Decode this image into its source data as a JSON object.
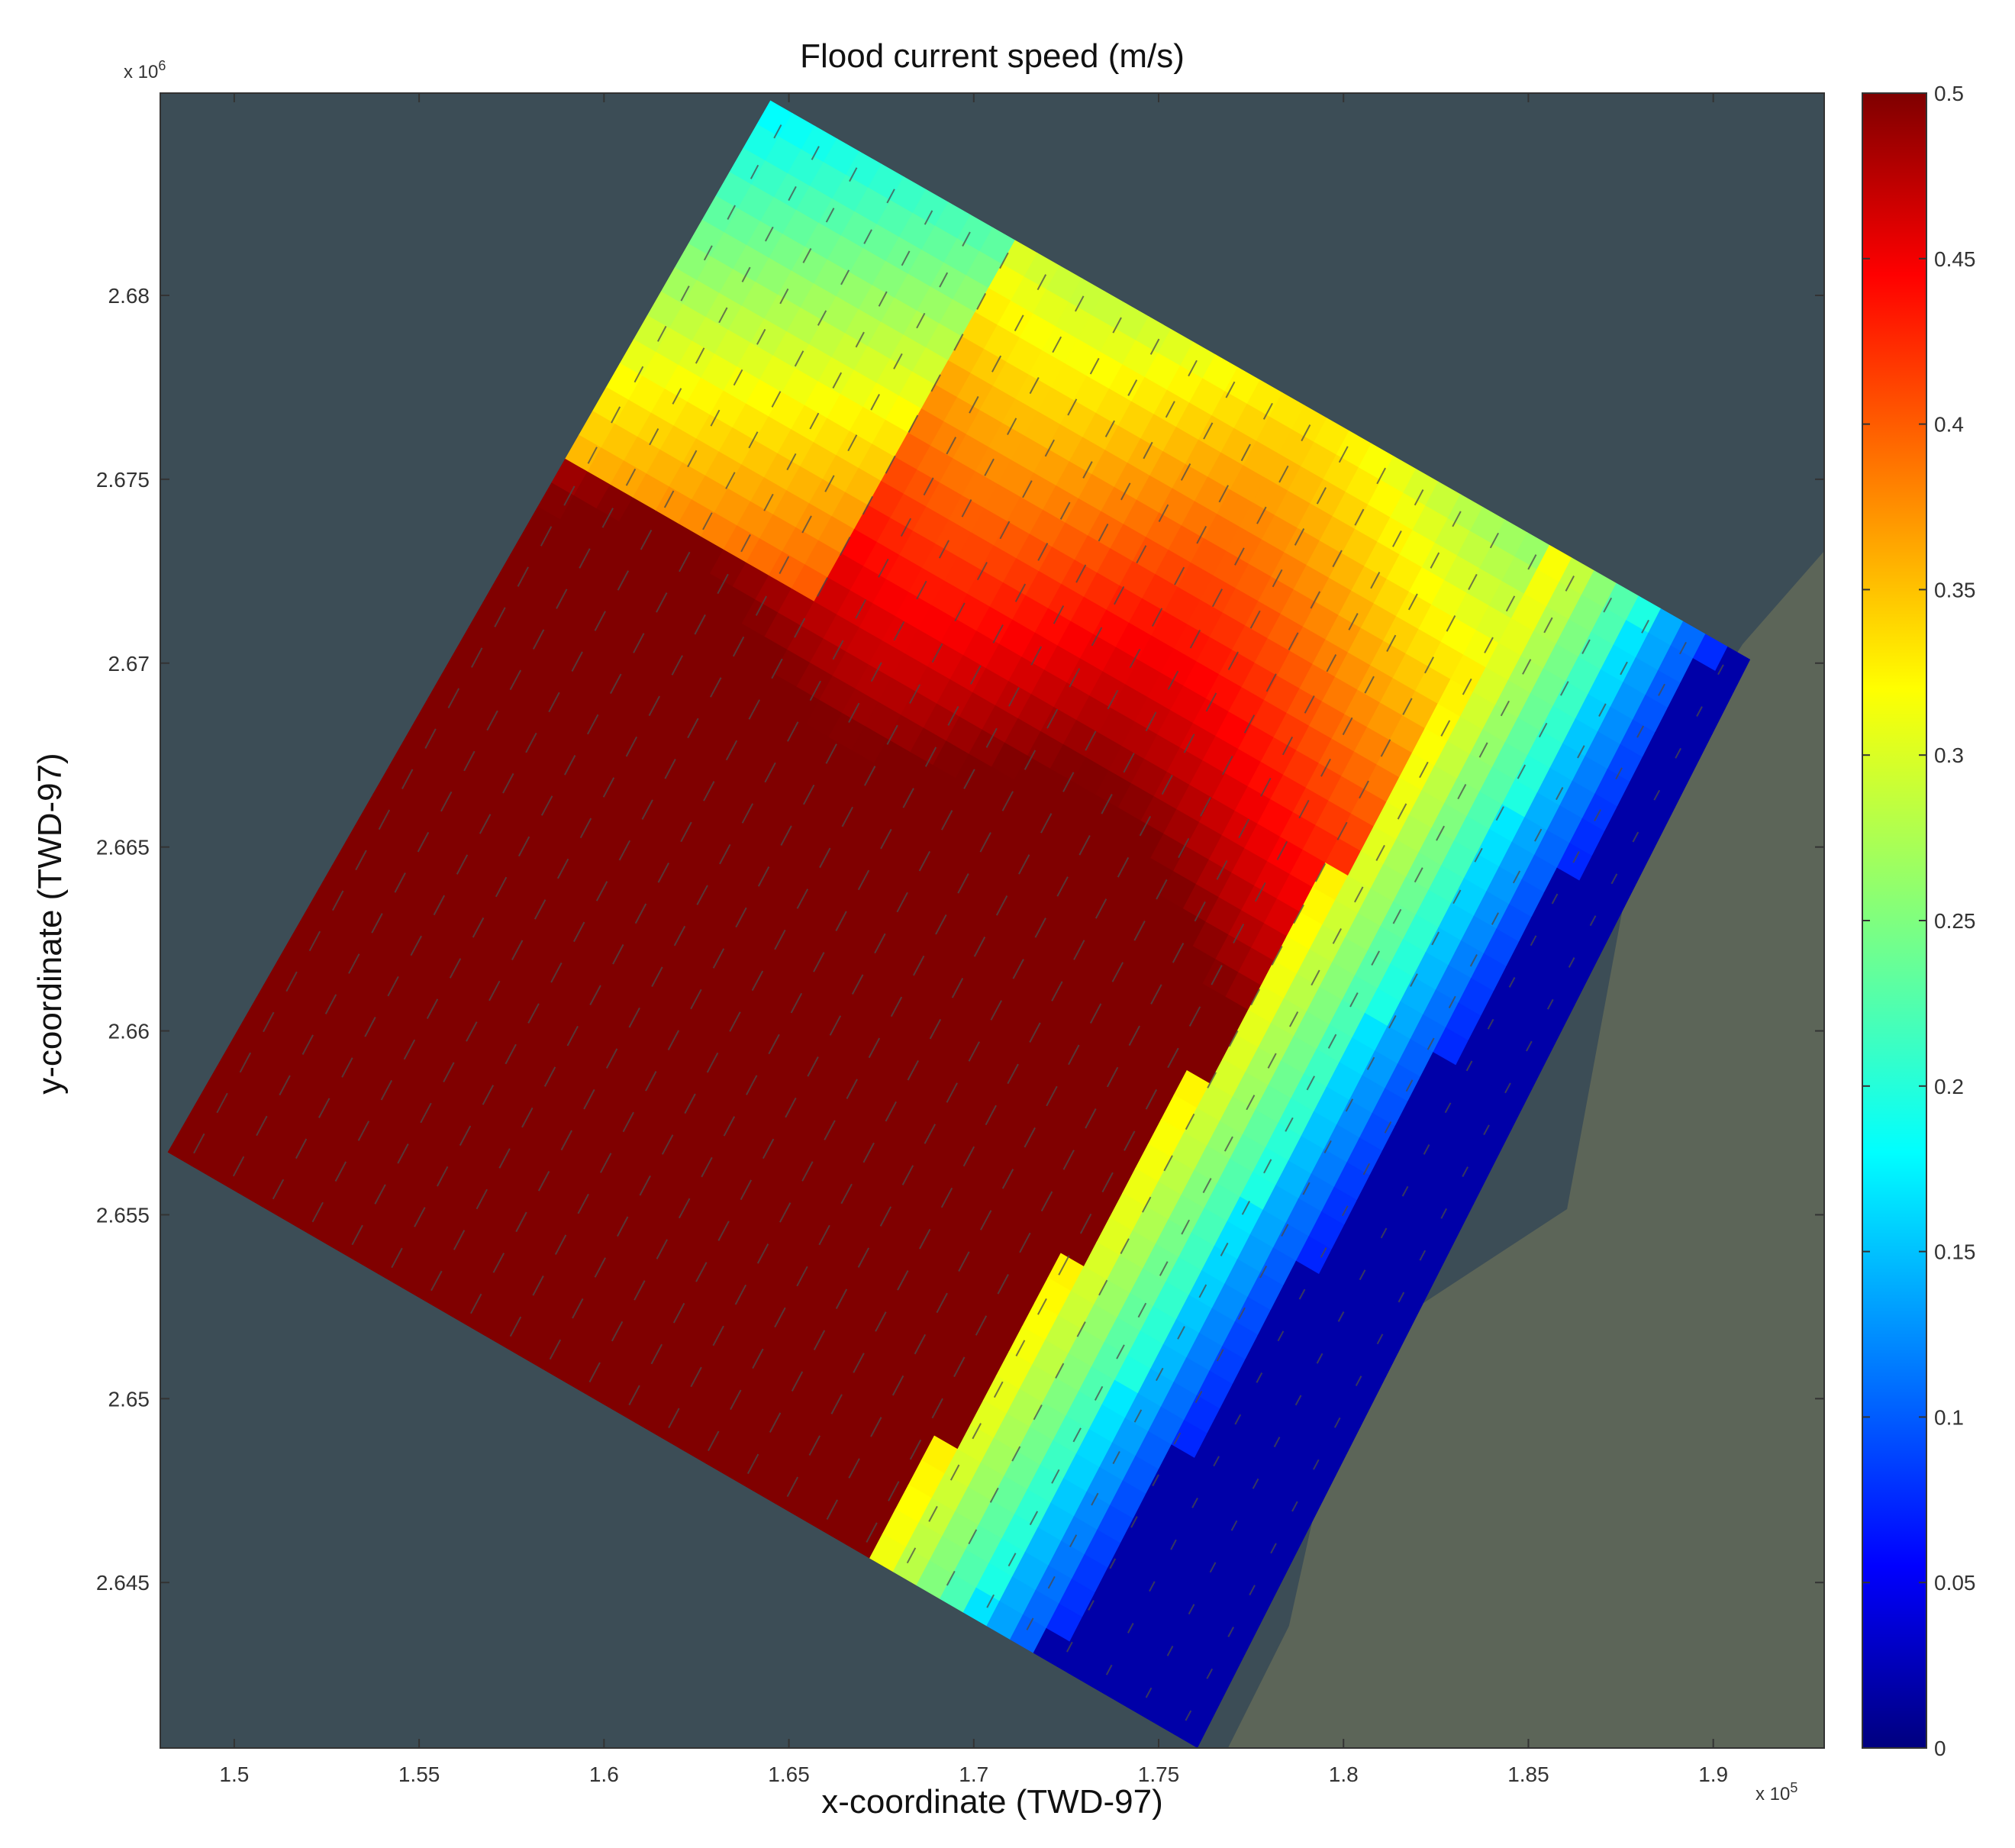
{
  "chart_data": {
    "type": "heatmap",
    "title": "Flood current speed (m/s)",
    "xlabel": "x-coordinate (TWD-97)",
    "ylabel": "y-coordinate (TWD-97)",
    "x_exponent_label": "x 10",
    "x_exponent_power": "5",
    "y_exponent_label": "x 10",
    "y_exponent_power": "6",
    "xlim": [
      1.48,
      1.93
    ],
    "ylim": [
      2.6405,
      2.6855
    ],
    "x_ticks": [
      1.5,
      1.55,
      1.6,
      1.65,
      1.7,
      1.75,
      1.8,
      1.85,
      1.9
    ],
    "x_tick_labels": [
      "1.5",
      "1.55",
      "1.6",
      "1.65",
      "1.7",
      "1.75",
      "1.8",
      "1.85",
      "1.9"
    ],
    "y_ticks": [
      2.645,
      2.65,
      2.655,
      2.66,
      2.665,
      2.67,
      2.675,
      2.68
    ],
    "y_tick_labels": [
      "2.645",
      "2.65",
      "2.655",
      "2.66",
      "2.665",
      "2.67",
      "2.675",
      "2.68"
    ],
    "colorbar": {
      "range": [
        0,
        0.5
      ],
      "ticks": [
        0,
        0.05,
        0.1,
        0.15,
        0.2,
        0.25,
        0.3,
        0.35,
        0.4,
        0.45,
        0.5
      ],
      "tick_labels": [
        "0",
        "0.05",
        "0.1",
        "0.15",
        "0.2",
        "0.25",
        "0.3",
        "0.35",
        "0.4",
        "0.45",
        "0.5"
      ],
      "colormap": "jet"
    },
    "domain_corners": [
      [
        1.645,
        2.6853
      ],
      [
        1.91,
        2.6701
      ],
      [
        1.7605,
        2.6405
      ],
      [
        1.482,
        2.6567
      ]
    ],
    "background_colors": {
      "sea": "#3c4d56",
      "land": "#5c6558"
    }
  }
}
